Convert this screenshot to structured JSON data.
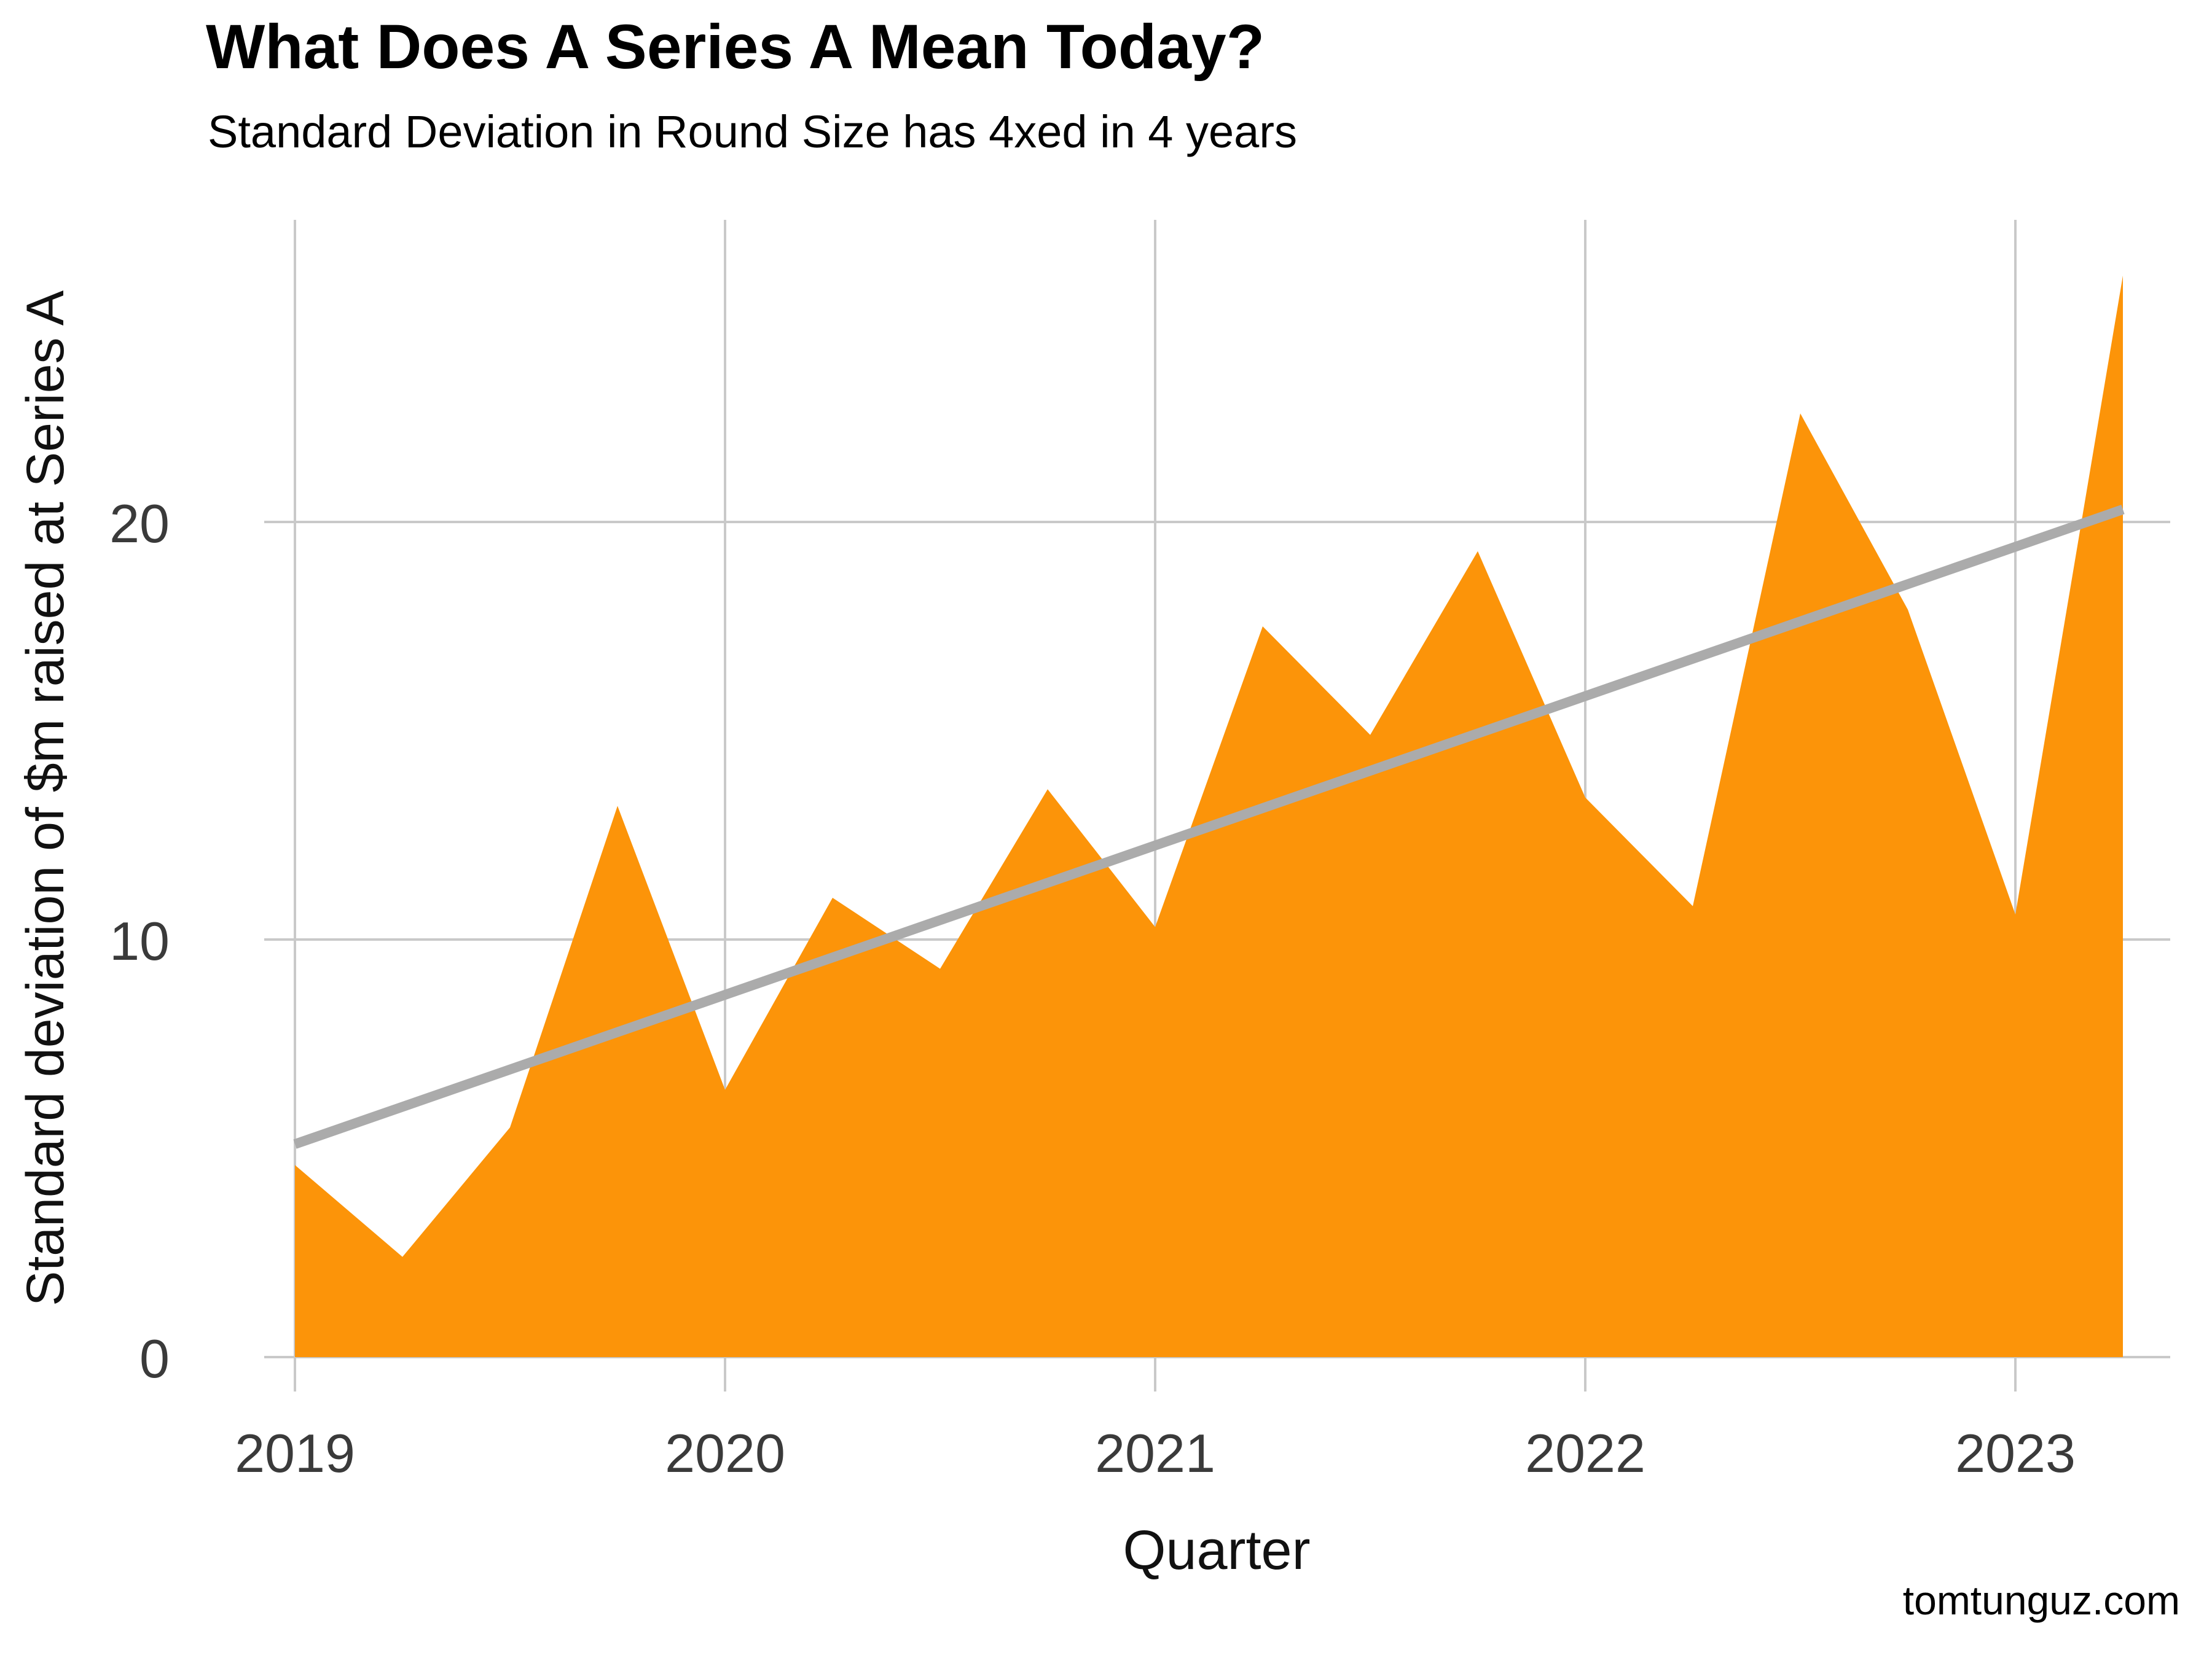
{
  "header": {
    "title": "What Does A Series A Mean Today?",
    "subtitle": "Standard Deviation in Round Size has 4xed in 4 years"
  },
  "footer": {
    "credit": "tomtunguz.com"
  },
  "chart_data": {
    "type": "area",
    "title": "What Does A Series A Mean Today?",
    "subtitle": "Standard Deviation in Round Size has 4xed in 4 years",
    "xlabel": "Quarter",
    "ylabel": "Standard deviation of $m raised at Series A",
    "x_tick_labels": [
      "2019",
      "2020",
      "2021",
      "2022",
      "2023"
    ],
    "y_tick_labels": [
      "0",
      "10",
      "20"
    ],
    "x_ticks": [
      2019,
      2020,
      2021,
      2022,
      2023
    ],
    "y_ticks": [
      0,
      10,
      20
    ],
    "xlim": [
      2018.93,
      2023.36
    ],
    "ylim": [
      -0.85,
      27.2
    ],
    "grid": true,
    "legend": false,
    "series": [
      {
        "name": "std-dev-of-series-a-round-size",
        "type": "area",
        "color": "#FC9409",
        "x": [
          2019.0,
          2019.25,
          2019.5,
          2019.75,
          2020.0,
          2020.25,
          2020.5,
          2020.75,
          2021.0,
          2021.25,
          2021.5,
          2021.75,
          2022.0,
          2022.25,
          2022.5,
          2022.75,
          2023.0,
          2023.25
        ],
        "labels": [
          "2019 Q1",
          "2019 Q2",
          "2019 Q3",
          "2019 Q4",
          "2020 Q1",
          "2020 Q2",
          "2020 Q3",
          "2020 Q4",
          "2021 Q1",
          "2021 Q2",
          "2021 Q3",
          "2021 Q4",
          "2022 Q1",
          "2022 Q2",
          "2022 Q3",
          "2022 Q4",
          "2023 Q1",
          "2023 Q2"
        ],
        "values": [
          4.6,
          2.4,
          5.5,
          13.2,
          6.4,
          11.0,
          9.3,
          13.6,
          10.3,
          17.5,
          14.9,
          19.3,
          13.4,
          10.8,
          22.6,
          17.9,
          10.6,
          25.9
        ]
      },
      {
        "name": "linear-trend",
        "type": "line",
        "color": "#ABABAB",
        "x": [
          2019.0,
          2023.25
        ],
        "values": [
          5.1,
          20.3
        ]
      }
    ],
    "colors": {
      "area": "#FC9409",
      "trend": "#ABABAB",
      "grid": "#C9C9C9",
      "axis_text": "#3A3A3A",
      "title_text": "#000000"
    }
  }
}
